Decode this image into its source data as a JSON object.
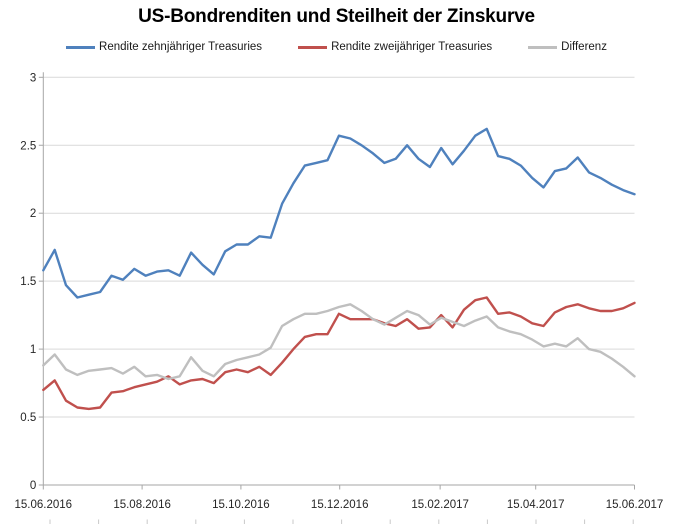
{
  "title": "US-Bondrenditen und Steilheit der Zinskurve",
  "chart_data": {
    "type": "line",
    "title": "US-Bondrenditen und Steilheit der Zinskurve",
    "xlabel": "",
    "ylabel": "",
    "ylim": [
      0,
      3
    ],
    "grid": "horizontal",
    "legend_position": "top",
    "x_tick_labels": [
      "15.06.2016",
      "15.08.2016",
      "15.10.2016",
      "15.12.2016",
      "15.02.2017",
      "15.04.2017",
      "15.06.2017"
    ],
    "y_ticks": [
      0,
      0.5,
      1,
      1.5,
      2,
      2.5,
      3
    ],
    "y_tick_labels": [
      "0",
      "0.5",
      "1",
      "1.5",
      "2",
      "2.5",
      "3"
    ],
    "colors": {
      "gridline": "#d9d9d9",
      "axis": "#a6a6a6",
      "label": "#262626"
    },
    "series": [
      {
        "name": "Rendite zehnjähriger Treasuries",
        "color": "#4F81BD",
        "values": [
          1.58,
          1.73,
          1.47,
          1.38,
          1.4,
          1.42,
          1.54,
          1.51,
          1.59,
          1.54,
          1.57,
          1.58,
          1.54,
          1.71,
          1.62,
          1.55,
          1.72,
          1.77,
          1.77,
          1.83,
          1.82,
          2.07,
          2.22,
          2.35,
          2.37,
          2.39,
          2.57,
          2.55,
          2.5,
          2.44,
          2.37,
          2.4,
          2.5,
          2.4,
          2.34,
          2.48,
          2.36,
          2.46,
          2.57,
          2.62,
          2.42,
          2.4,
          2.35,
          2.26,
          2.19,
          2.31,
          2.33,
          2.41,
          2.3,
          2.26,
          2.21,
          2.17,
          2.14
        ]
      },
      {
        "name": "Rendite zweijähriger Treasuries",
        "color": "#C0504D",
        "values": [
          0.7,
          0.77,
          0.62,
          0.57,
          0.56,
          0.57,
          0.68,
          0.69,
          0.72,
          0.74,
          0.76,
          0.8,
          0.74,
          0.77,
          0.78,
          0.75,
          0.83,
          0.85,
          0.83,
          0.87,
          0.81,
          0.9,
          1.0,
          1.09,
          1.11,
          1.11,
          1.26,
          1.22,
          1.22,
          1.22,
          1.19,
          1.17,
          1.22,
          1.15,
          1.16,
          1.25,
          1.16,
          1.29,
          1.36,
          1.38,
          1.26,
          1.27,
          1.24,
          1.19,
          1.17,
          1.27,
          1.31,
          1.33,
          1.3,
          1.28,
          1.28,
          1.3,
          1.34
        ]
      },
      {
        "name": "Differenz",
        "color": "#BFBFBF",
        "values": [
          0.88,
          0.96,
          0.85,
          0.81,
          0.84,
          0.85,
          0.86,
          0.82,
          0.87,
          0.8,
          0.81,
          0.78,
          0.8,
          0.94,
          0.84,
          0.8,
          0.89,
          0.92,
          0.94,
          0.96,
          1.01,
          1.17,
          1.22,
          1.26,
          1.26,
          1.28,
          1.31,
          1.33,
          1.28,
          1.22,
          1.18,
          1.23,
          1.28,
          1.25,
          1.18,
          1.23,
          1.2,
          1.17,
          1.21,
          1.24,
          1.16,
          1.13,
          1.11,
          1.07,
          1.02,
          1.04,
          1.02,
          1.08,
          1.0,
          0.98,
          0.93,
          0.87,
          0.8
        ]
      }
    ]
  }
}
